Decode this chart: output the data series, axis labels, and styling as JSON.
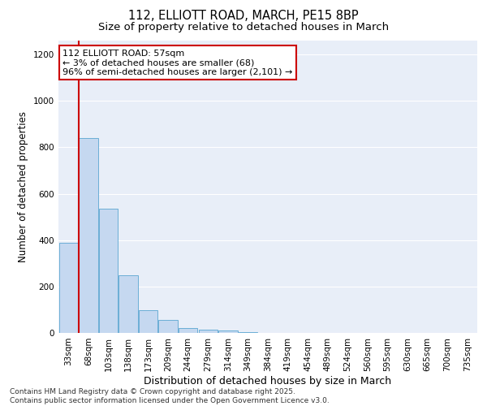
{
  "title1": "112, ELLIOTT ROAD, MARCH, PE15 8BP",
  "title2": "Size of property relative to detached houses in March",
  "xlabel": "Distribution of detached houses by size in March",
  "ylabel": "Number of detached properties",
  "categories": [
    "33sqm",
    "68sqm",
    "103sqm",
    "138sqm",
    "173sqm",
    "209sqm",
    "244sqm",
    "279sqm",
    "314sqm",
    "349sqm",
    "384sqm",
    "419sqm",
    "454sqm",
    "489sqm",
    "524sqm",
    "560sqm",
    "595sqm",
    "630sqm",
    "665sqm",
    "700sqm",
    "735sqm"
  ],
  "values": [
    390,
    840,
    537,
    248,
    98,
    57,
    20,
    15,
    10,
    2,
    0,
    0,
    0,
    0,
    0,
    0,
    0,
    0,
    0,
    0,
    0
  ],
  "bar_color": "#c5d8f0",
  "bar_edge_color": "#6baed6",
  "vline_color": "#cc0000",
  "vline_x": 0.5,
  "annotation_text": "112 ELLIOTT ROAD: 57sqm\n← 3% of detached houses are smaller (68)\n96% of semi-detached houses are larger (2,101) →",
  "annotation_box_color": "#ffffff",
  "annotation_box_edge": "#cc0000",
  "ylim": [
    0,
    1260
  ],
  "yticks": [
    0,
    200,
    400,
    600,
    800,
    1000,
    1200
  ],
  "background_color": "#e8eef8",
  "grid_color": "#ffffff",
  "footnote": "Contains HM Land Registry data © Crown copyright and database right 2025.\nContains public sector information licensed under the Open Government Licence v3.0.",
  "title1_fontsize": 10.5,
  "title2_fontsize": 9.5,
  "xlabel_fontsize": 9,
  "ylabel_fontsize": 8.5,
  "tick_fontsize": 7.5,
  "annotation_fontsize": 8,
  "footnote_fontsize": 6.5
}
